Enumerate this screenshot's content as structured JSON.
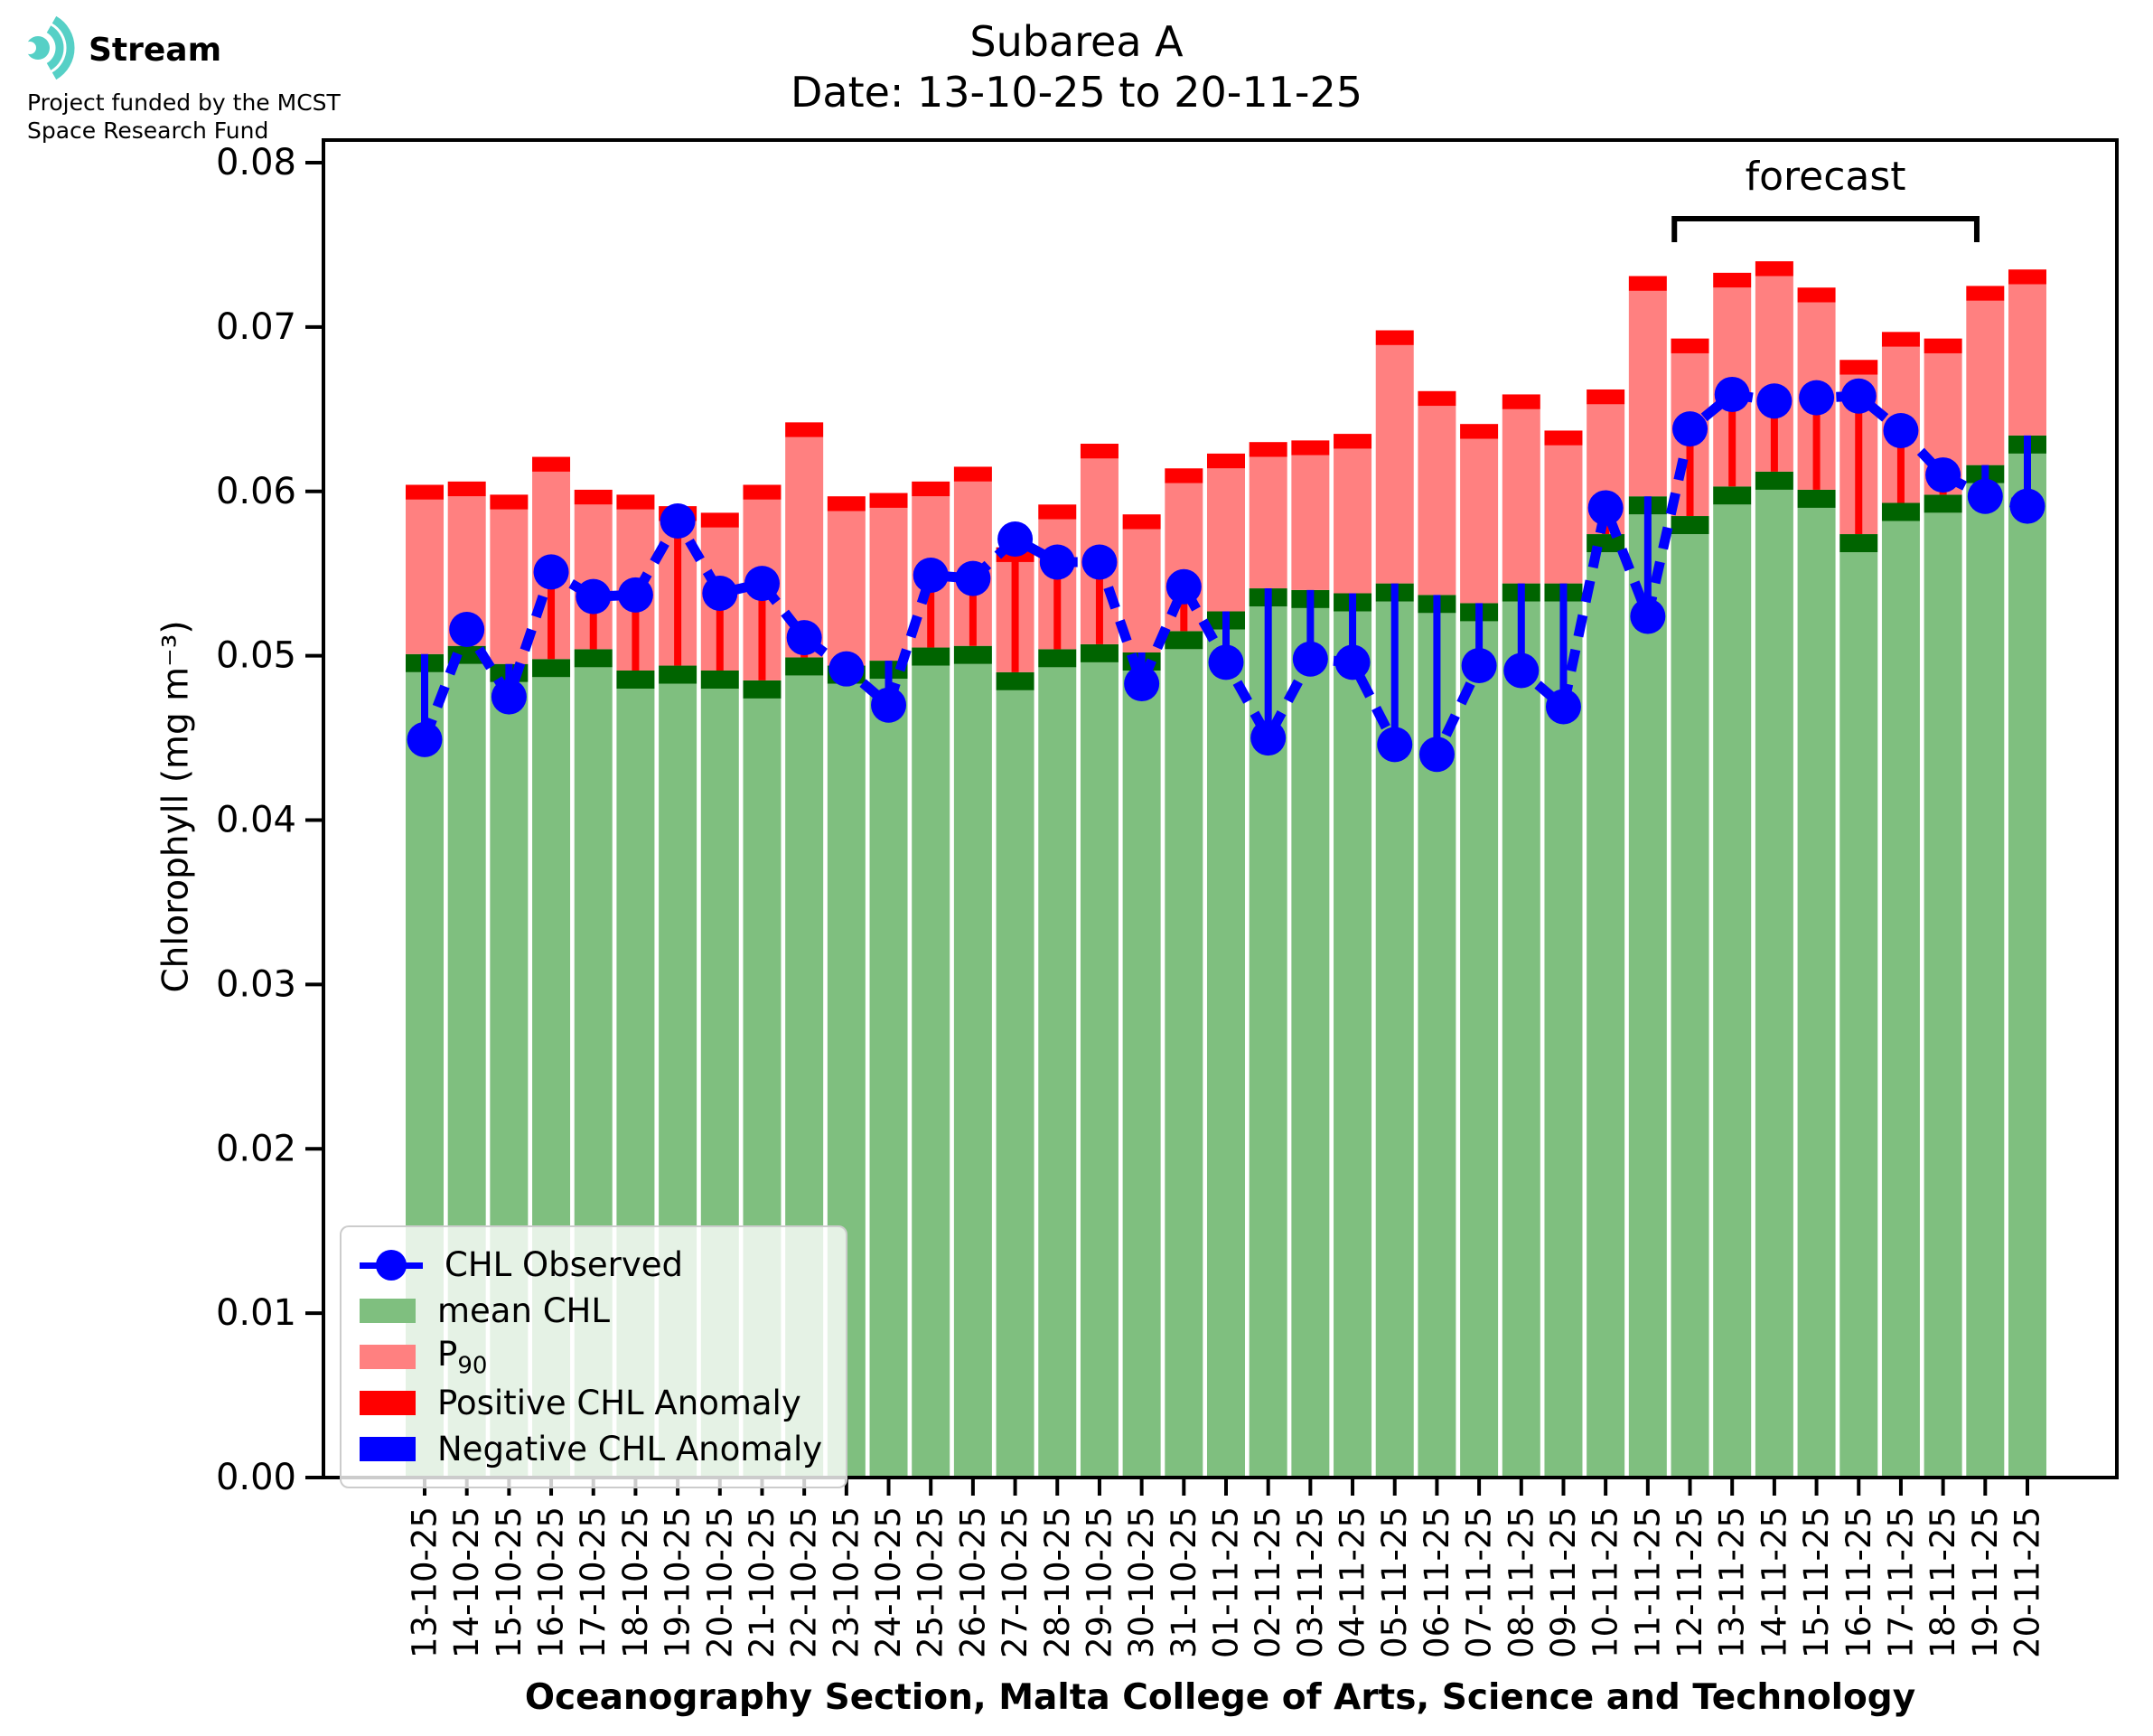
{
  "logo": {
    "brand": "Stream",
    "line1": "Project funded by the MCST",
    "line2": "Space Research Fund",
    "icon": "sound-waves-icon",
    "color": "#56d0c6"
  },
  "title": {
    "line1": "Subarea A",
    "line2": "Date: 13-10-25 to 20-11-25"
  },
  "axes": {
    "ylabel": "Chlorophyll (mg m⁻³)",
    "xlabel": "Oceanography Section, Malta College of Arts, Science and Technology",
    "yticks": [
      "0.00",
      "0.01",
      "0.02",
      "0.03",
      "0.04",
      "0.05",
      "0.06",
      "0.07",
      "0.08"
    ]
  },
  "legend": {
    "items": [
      {
        "label": "CHL Observed",
        "swatch": "line-dot",
        "color": "#0000ff"
      },
      {
        "label": "mean CHL",
        "swatch": "patch",
        "color": "#7fbf7f"
      },
      {
        "label": "P",
        "label_sub": "90",
        "swatch": "patch",
        "color": "#ff8080"
      },
      {
        "label": "Positive CHL Anomaly",
        "swatch": "patch",
        "color": "#ff0000"
      },
      {
        "label": "Negative CHL Anomaly",
        "swatch": "patch",
        "color": "#0000ff"
      }
    ]
  },
  "colors": {
    "observed": "#0000ff",
    "mean_bar": "#7fbf7f",
    "mean_edge": "#006400",
    "p90_bar": "#ff8080",
    "p90_edge": "#ff0000",
    "positive_anomaly": "#ff0000",
    "negative_anomaly": "#0000ff",
    "axis": "#000000"
  },
  "chart_data": {
    "type": "bar+line",
    "title": "Subarea A — Date: 13-10-25 to 20-11-25",
    "xlabel": "Oceanography Section, Malta College of Arts, Science and Technology",
    "ylabel": "Chlorophyll (mg m⁻³)",
    "ylim": [
      0,
      0.0814
    ],
    "ytick_step": 0.01,
    "grid": false,
    "legend_position": "lower-left",
    "forecast": {
      "label": "forecast",
      "start_date": "12-11-25",
      "end_date": "20-11-25"
    },
    "dates": [
      "13-10-25",
      "14-10-25",
      "15-10-25",
      "16-10-25",
      "17-10-25",
      "18-10-25",
      "19-10-25",
      "20-10-25",
      "21-10-25",
      "22-10-25",
      "23-10-25",
      "24-10-25",
      "25-10-25",
      "26-10-25",
      "27-10-25",
      "28-10-25",
      "29-10-25",
      "30-10-25",
      "31-10-25",
      "01-11-25",
      "02-11-25",
      "03-11-25",
      "04-11-25",
      "05-11-25",
      "06-11-25",
      "07-11-25",
      "08-11-25",
      "09-11-25",
      "10-11-25",
      "11-11-25",
      "12-11-25",
      "13-11-25",
      "14-11-25",
      "15-11-25",
      "16-11-25",
      "17-11-25",
      "18-11-25",
      "19-11-25",
      "20-11-25"
    ],
    "series": [
      {
        "name": "mean CHL",
        "render": "bar",
        "values": [
          0.0501,
          0.0506,
          0.0495,
          0.0498,
          0.0504,
          0.0491,
          0.0494,
          0.0491,
          0.0485,
          0.0499,
          0.0494,
          0.0497,
          0.0505,
          0.0506,
          0.049,
          0.0504,
          0.0507,
          0.0502,
          0.0515,
          0.0527,
          0.0541,
          0.054,
          0.0538,
          0.0544,
          0.0537,
          0.0532,
          0.0544,
          0.0544,
          0.0574,
          0.0597,
          0.0585,
          0.0603,
          0.0612,
          0.0601,
          0.0574,
          0.0593,
          0.0598,
          0.0616,
          0.0634
        ]
      },
      {
        "name": "P90",
        "render": "bar",
        "values": [
          0.0604,
          0.0606,
          0.0598,
          0.0621,
          0.0601,
          0.0598,
          0.0591,
          0.0587,
          0.0604,
          0.0642,
          0.0597,
          0.0599,
          0.0606,
          0.0615,
          0.0566,
          0.0592,
          0.0629,
          0.0586,
          0.0614,
          0.0623,
          0.063,
          0.0631,
          0.0635,
          0.0698,
          0.0661,
          0.0641,
          0.0659,
          0.0637,
          0.0662,
          0.0731,
          0.0693,
          0.0733,
          0.074,
          0.0724,
          0.068,
          0.0697,
          0.0693,
          0.0725,
          0.0735
        ]
      },
      {
        "name": "CHL Observed",
        "render": "line+stem",
        "values": [
          0.0449,
          0.0516,
          0.0475,
          0.0551,
          0.0536,
          0.0537,
          0.0582,
          0.0538,
          0.0544,
          0.0511,
          0.0492,
          0.047,
          0.0549,
          0.0547,
          0.0571,
          0.0557,
          0.0557,
          0.0483,
          0.0542,
          0.0496,
          0.045,
          0.0498,
          0.0496,
          0.0446,
          0.044,
          0.0494,
          0.0491,
          0.0469,
          0.059,
          0.0524,
          0.0638,
          0.0659,
          0.0655,
          0.0657,
          0.0658,
          0.0637,
          0.061,
          0.0597,
          0.0591
        ]
      }
    ]
  }
}
